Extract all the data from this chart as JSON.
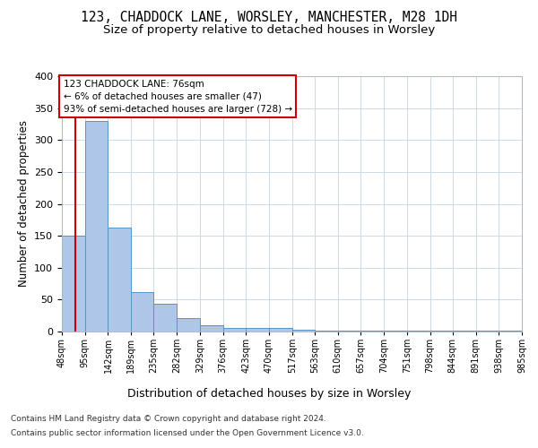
{
  "title1": "123, CHADDOCK LANE, WORSLEY, MANCHESTER, M28 1DH",
  "title2": "Size of property relative to detached houses in Worsley",
  "xlabel": "Distribution of detached houses by size in Worsley",
  "ylabel": "Number of detached properties",
  "bin_edges": [
    48,
    95,
    142,
    189,
    235,
    282,
    329,
    376,
    423,
    470,
    517,
    563,
    610,
    657,
    704,
    751,
    798,
    844,
    891,
    938,
    985
  ],
  "bar_heights": [
    150,
    330,
    163,
    62,
    44,
    21,
    10,
    5,
    5,
    5,
    3,
    2,
    1,
    1,
    1,
    1,
    1,
    1,
    1,
    1
  ],
  "bar_color": "#aec6e8",
  "bar_edge_color": "#5594c8",
  "property_size": 76,
  "property_line_color": "#cc0000",
  "annotation_line1": "123 CHADDOCK LANE: 76sqm",
  "annotation_line2": "← 6% of detached houses are smaller (47)",
  "annotation_line3": "93% of semi-detached houses are larger (728) →",
  "annotation_box_color": "#cc0000",
  "ylim": [
    0,
    400
  ],
  "yticks": [
    0,
    50,
    100,
    150,
    200,
    250,
    300,
    350,
    400
  ],
  "footnote_line1": "Contains HM Land Registry data © Crown copyright and database right 2024.",
  "footnote_line2": "Contains public sector information licensed under the Open Government Licence v3.0.",
  "tick_labels": [
    "48sqm",
    "95sqm",
    "142sqm",
    "189sqm",
    "235sqm",
    "282sqm",
    "329sqm",
    "376sqm",
    "423sqm",
    "470sqm",
    "517sqm",
    "563sqm",
    "610sqm",
    "657sqm",
    "704sqm",
    "751sqm",
    "798sqm",
    "844sqm",
    "891sqm",
    "938sqm",
    "985sqm"
  ]
}
